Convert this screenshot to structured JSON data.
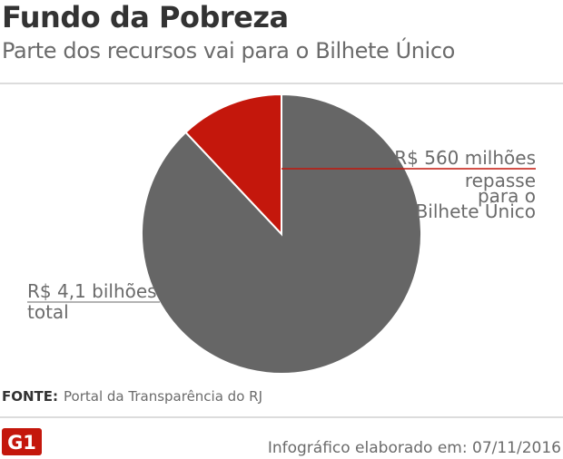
{
  "header": {
    "title": "Fundo da Pobreza",
    "subtitle": "Parte dos recursos vai para o Bilhete Único"
  },
  "chart_data": {
    "type": "pie",
    "title": "Fundo da Pobreza",
    "subtitle": "Parte dos recursos vai para o Bilhete Único",
    "slices": [
      {
        "value_label": "R$ 4,1 bilhões",
        "caption": "total",
        "value": 4100,
        "unit": "R$ milhões",
        "color": "#666666"
      },
      {
        "value_label": "R$ 560 milhões",
        "caption": "repasse para o Bilhete Único",
        "value": 560,
        "unit": "R$ milhões",
        "color": "#c4170c"
      }
    ]
  },
  "footer": {
    "source_key": "FONTE:",
    "source_text": "Portal da Transparência do RJ",
    "logo_text": "G1",
    "credit": "Infográfico elaborado em: 07/11/2016"
  },
  "colors": {
    "accent": "#c4170c",
    "slice_gray": "#666666",
    "rule": "#dcdcdc",
    "text_dark": "#333333",
    "text_muted": "#6b6b6b"
  }
}
